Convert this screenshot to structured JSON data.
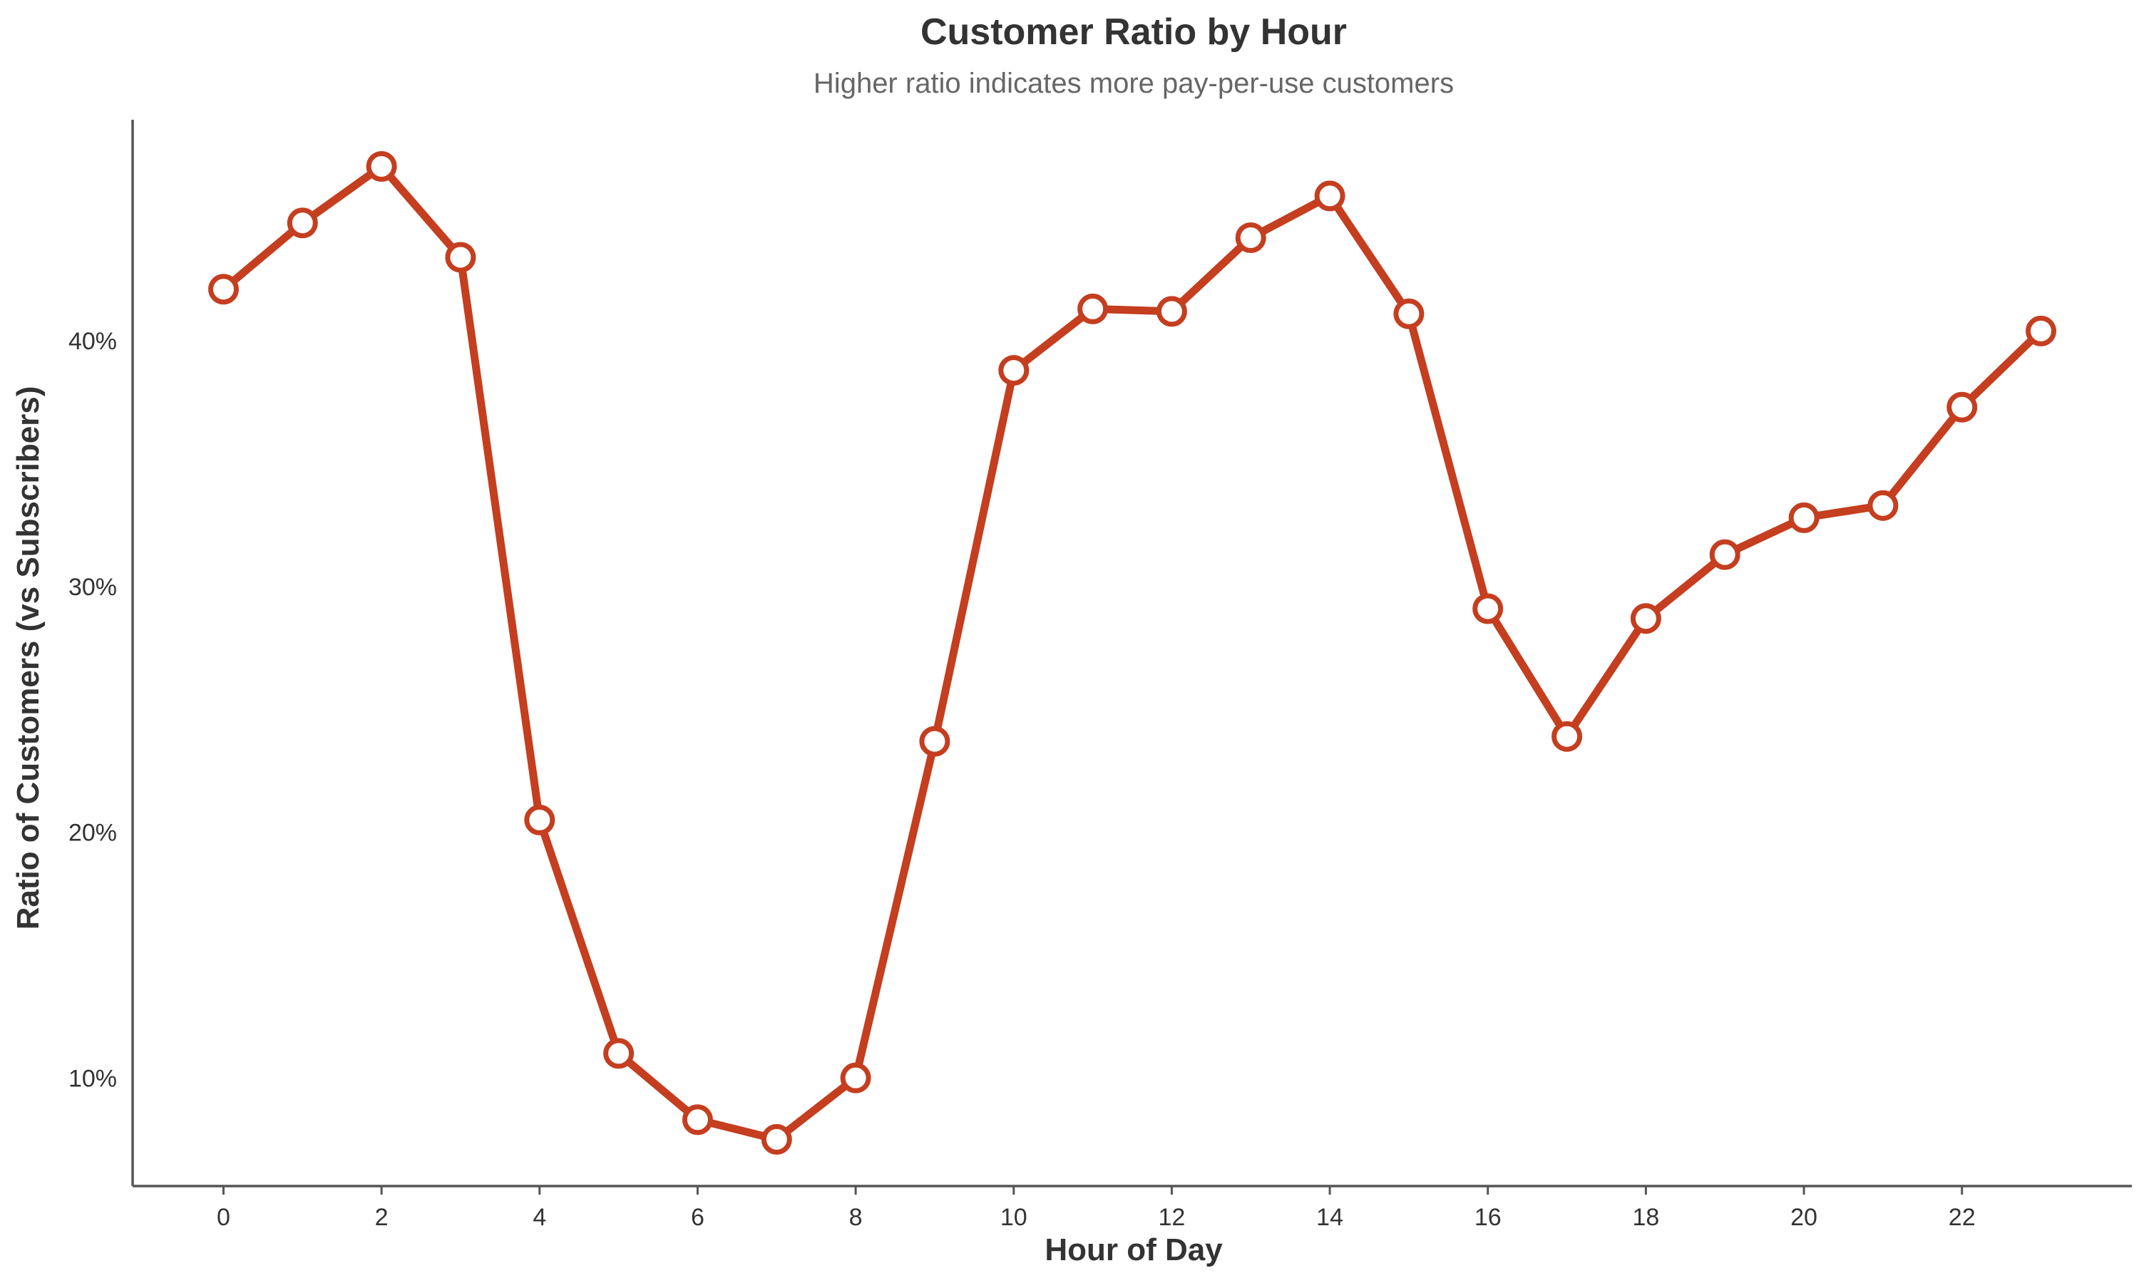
{
  "chart_data": {
    "type": "line",
    "title": "Customer Ratio by Hour",
    "subtitle": "Higher ratio indicates more pay-per-use customers",
    "xlabel": "Hour of Day",
    "ylabel": "Ratio of Customers (vs Subscribers)",
    "x": [
      0,
      1,
      2,
      3,
      4,
      5,
      6,
      7,
      8,
      9,
      10,
      11,
      12,
      13,
      14,
      15,
      16,
      17,
      18,
      19,
      20,
      21,
      22,
      23
    ],
    "y": [
      0.421,
      0.448,
      0.471,
      0.434,
      0.205,
      0.11,
      0.083,
      0.075,
      0.1,
      0.237,
      0.388,
      0.413,
      0.412,
      0.442,
      0.459,
      0.411,
      0.291,
      0.239,
      0.287,
      0.313,
      0.328,
      0.333,
      0.373,
      0.404
    ],
    "xlim": [
      -1.15,
      24.15
    ],
    "ylim": [
      0.056,
      0.49
    ],
    "xticks": [
      0,
      2,
      4,
      6,
      8,
      10,
      12,
      14,
      16,
      18,
      20,
      22
    ],
    "xtick_labels": [
      "0",
      "2",
      "4",
      "6",
      "8",
      "10",
      "12",
      "14",
      "16",
      "18",
      "20",
      "22"
    ],
    "yticks": [
      0.1,
      0.2,
      0.3,
      0.4
    ],
    "ytick_labels": [
      "10%",
      "20%",
      "30%",
      "40%"
    ],
    "grid": false,
    "legend": "none",
    "colors": {
      "line": "#c43e1f",
      "marker_fill": "#ffffff",
      "axis": "#555555",
      "text": "#333333",
      "subtitle": "#666666"
    }
  }
}
